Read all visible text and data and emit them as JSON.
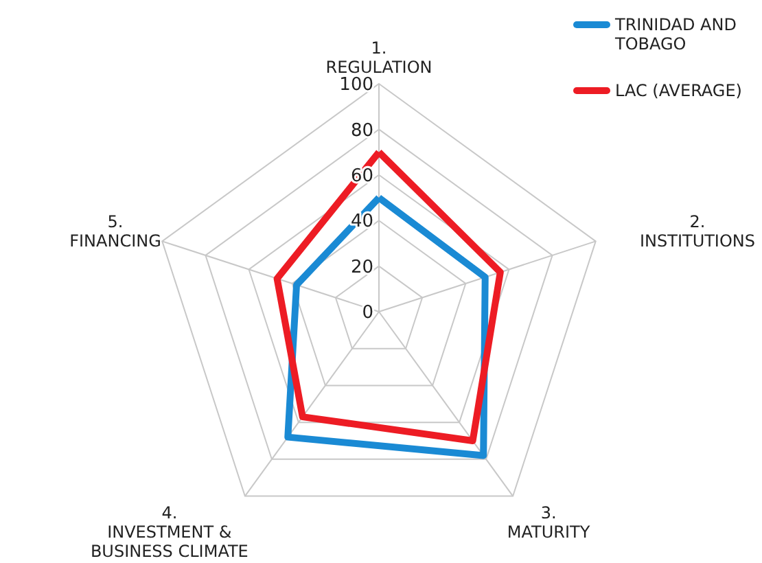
{
  "chart_data": {
    "type": "radar",
    "categories": [
      "1.\nREGULATION",
      "2.\nINSTITUTIONS",
      "3.\nMATURITY",
      "4.\nINVESTMENT &\nBUSINESS CLIMATE",
      "5.\nFINANCING"
    ],
    "series": [
      {
        "name": "TRINIDAD AND\nTOBAGO",
        "color": "#1a8ad4",
        "values": [
          50,
          49,
          78,
          68,
          38
        ]
      },
      {
        "name": "LAC (AVERAGE)",
        "color": "#ed1c24",
        "values": [
          70,
          56,
          70,
          57,
          47
        ]
      }
    ],
    "ylim": [
      0,
      100
    ],
    "yticks": [
      0,
      20,
      40,
      60,
      80,
      100
    ],
    "grid": true,
    "legend": "top right"
  }
}
